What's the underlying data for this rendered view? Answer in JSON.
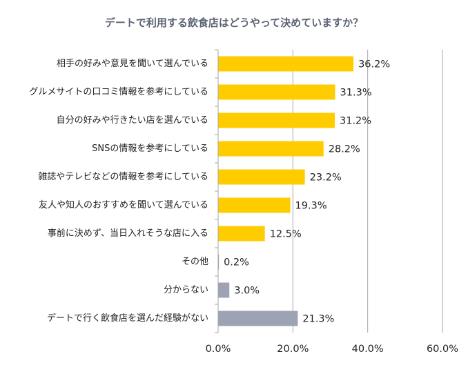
{
  "chart_data": {
    "type": "bar",
    "orientation": "horizontal",
    "title": "デートで利用する飲食店はどうやって決めていますか？",
    "categories": [
      "相手の好みや意見を聞いて選んでいる",
      "グルメサイトの口コミ情報を参考にしている",
      "自分の好みや行きたい店を選んでいる",
      "SNSの情報を参考にしている",
      "雑誌やテレビなどの情報を参考にしている",
      "友人や知人のおすすめを聞いて選んでいる",
      "事前に決めず、当日入れそうな店に入る",
      "その他",
      "分からない",
      "デートで行く飲食店を選んだ経験がない"
    ],
    "values": [
      36.2,
      31.3,
      31.2,
      28.2,
      23.2,
      19.3,
      12.5,
      0.2,
      3.0,
      21.3
    ],
    "value_labels": [
      "36.2%",
      "31.3%",
      "31.2%",
      "28.2%",
      "23.2%",
      "19.3%",
      "12.5%",
      "0.2%",
      "3.0%",
      "21.3%"
    ],
    "bar_colors": [
      "#ffcc00",
      "#ffcc00",
      "#ffcc00",
      "#ffcc00",
      "#ffcc00",
      "#ffcc00",
      "#ffcc00",
      "#9da3b4",
      "#9da3b4",
      "#9da3b4"
    ],
    "xlim": [
      0,
      60
    ],
    "xticks": [
      0,
      20,
      40,
      60
    ],
    "xtick_labels": [
      "0.0%",
      "20.0%",
      "40.0%",
      "60.0%"
    ],
    "grid": "vertical",
    "gridline_color": "#a6a6a6",
    "xlabel": "",
    "ylabel": ""
  }
}
